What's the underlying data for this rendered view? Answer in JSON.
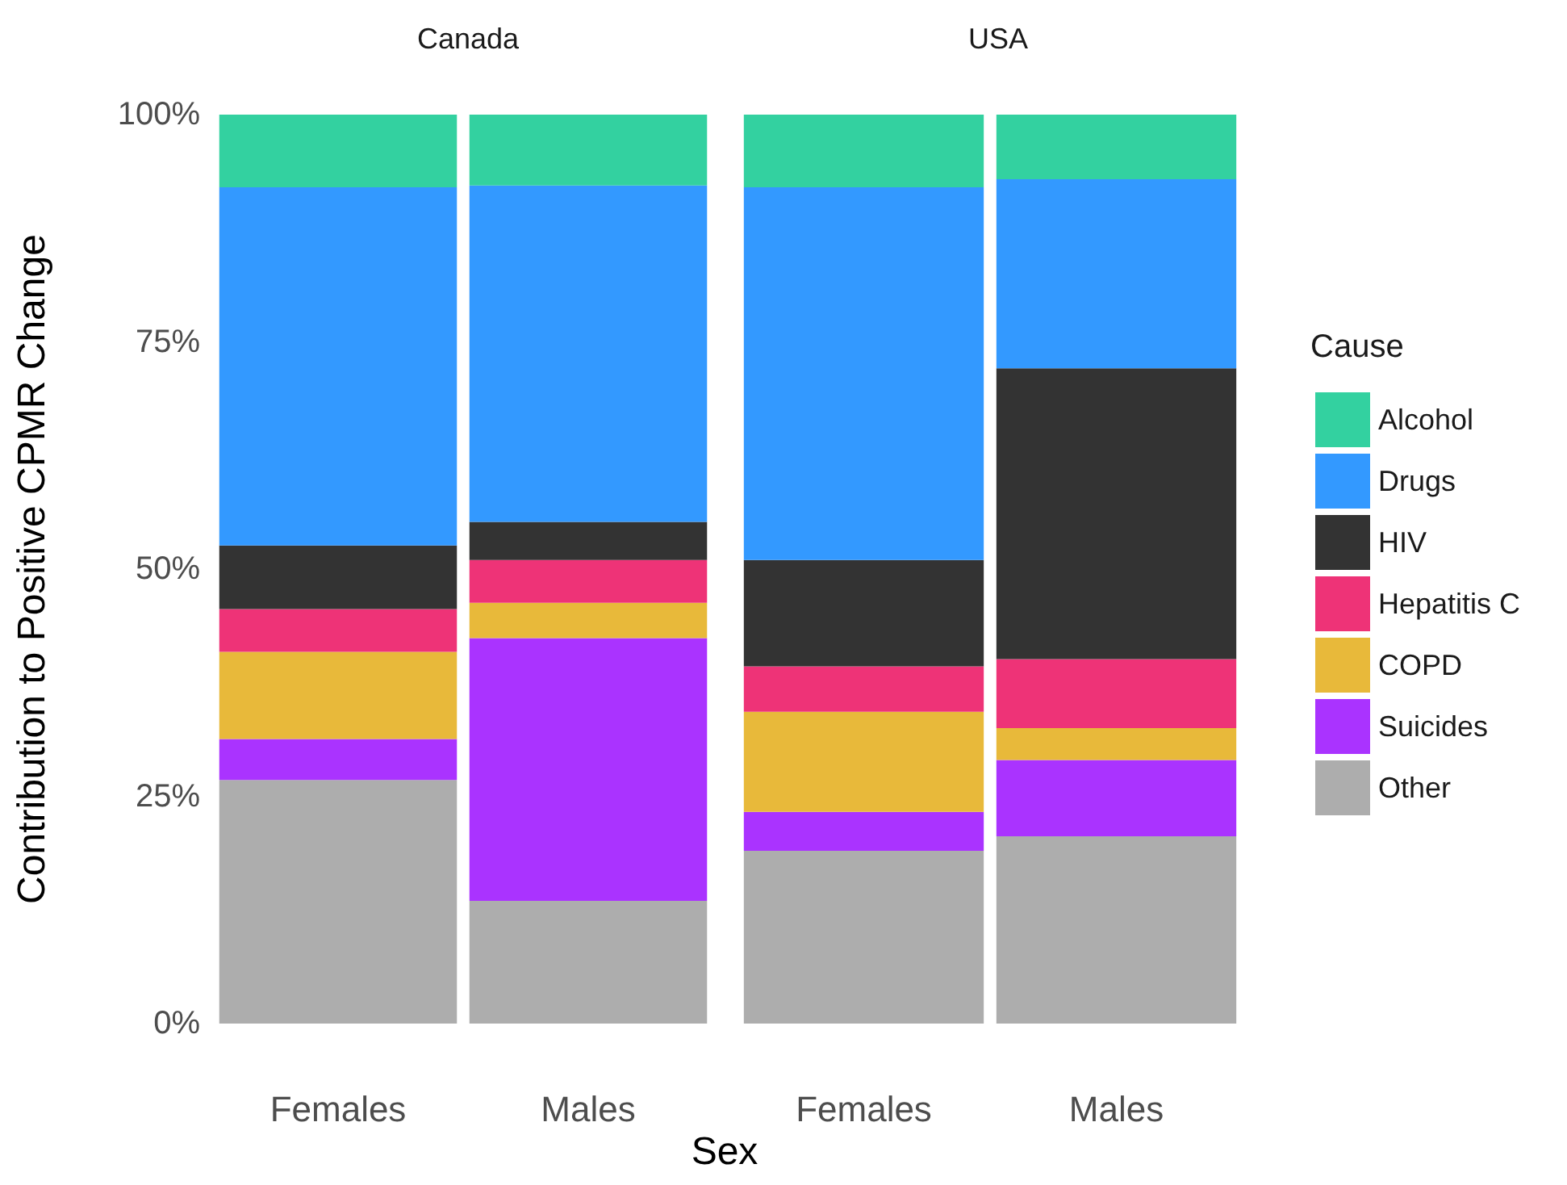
{
  "chart_data": [
    {
      "type": "bar",
      "stacked": true,
      "title": "Canada",
      "ylabel": "Contribution to Positive CPMR Change",
      "xlabel": "Sex",
      "categories": [
        "Females",
        "Males"
      ],
      "ylim": [
        0,
        100
      ],
      "yticks": [
        {
          "value": 0,
          "label": "0%"
        },
        {
          "value": 25,
          "label": "25%"
        },
        {
          "value": 50,
          "label": "50%"
        },
        {
          "value": 75,
          "label": "75%"
        },
        {
          "value": 100,
          "label": "100%"
        }
      ],
      "grid": false,
      "legend": false,
      "series": [
        {
          "color": "#adadad",
          "values": [
            26.8,
            13.5
          ]
        },
        {
          "color": "#aa33ff",
          "values": [
            4.5,
            28.9
          ]
        },
        {
          "color": "#e8b93a",
          "values": [
            9.6,
            3.9
          ]
        },
        {
          "color": "#ee3377",
          "values": [
            4.7,
            4.7
          ]
        },
        {
          "color": "#333333",
          "values": [
            7.0,
            4.2
          ]
        },
        {
          "color": "#3399ff",
          "values": [
            39.4,
            37.0
          ]
        },
        {
          "color": "#33d1a0",
          "values": [
            8.0,
            7.8
          ]
        }
      ]
    },
    {
      "type": "bar",
      "stacked": true,
      "title": "USA",
      "categories": [
        "Females",
        "Males"
      ],
      "ylim": [
        0,
        100
      ],
      "tick_labels": "x",
      "grid": false,
      "legend": "right",
      "legend_title": "Cause",
      "series": [
        {
          "name": "Other",
          "color": "#adadad",
          "values": [
            19.0,
            20.6
          ]
        },
        {
          "name": "Suicides",
          "color": "#aa33ff",
          "values": [
            4.3,
            8.4
          ]
        },
        {
          "name": "COPD",
          "color": "#e8b93a",
          "values": [
            11.0,
            3.5
          ]
        },
        {
          "name": "Hepatitis C",
          "color": "#ee3377",
          "values": [
            5.0,
            7.6
          ]
        },
        {
          "name": "HIV",
          "color": "#333333",
          "values": [
            11.7,
            32.0
          ]
        },
        {
          "name": "Drugs",
          "color": "#3399ff",
          "values": [
            41.0,
            20.8
          ]
        },
        {
          "name": "Alcohol",
          "color": "#33d1a0",
          "values": [
            8.0,
            7.1
          ]
        }
      ]
    }
  ]
}
